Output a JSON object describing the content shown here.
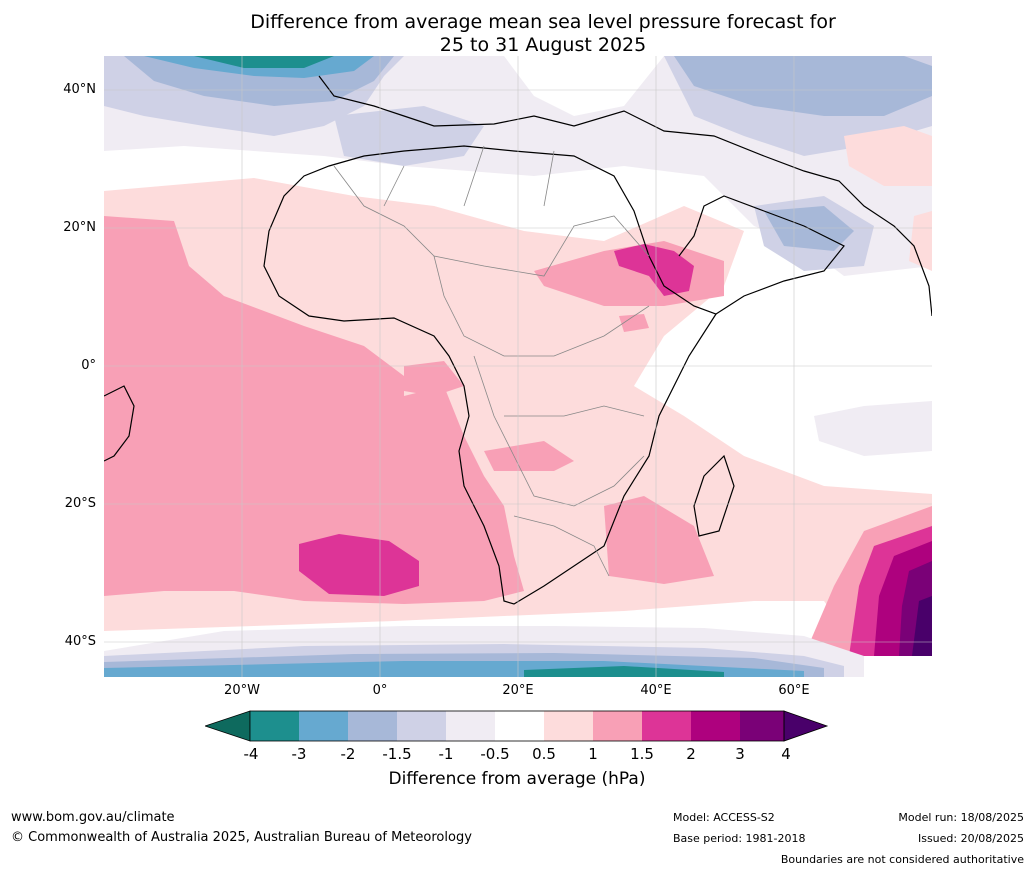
{
  "title": {
    "line1": "Difference from average mean sea level pressure forecast for",
    "line2": "25 to 31 August 2025"
  },
  "axes": {
    "lat_labels": [
      "40°N",
      "20°N",
      "0°",
      "20°S",
      "40°S"
    ],
    "lon_labels": [
      "20°W",
      "0°",
      "20°E",
      "40°E",
      "60°E"
    ]
  },
  "colorbar": {
    "label": "Difference from average (hPa)",
    "ticks": [
      "-4",
      "-3",
      "-2",
      "-1.5",
      "-1",
      "-0.5",
      "0.5",
      "1",
      "1.5",
      "2",
      "3",
      "4"
    ],
    "colors": {
      "below_-4": "#0e6a5e",
      "-4_-3": "#1d8f8e",
      "-3_-2": "#66a9d0",
      "-2_-1.5": "#a7b8d8",
      "-1.5_-1": "#cfd1e6",
      "-1_-0.5": "#f0ecf3",
      "-0.5_0.5": "#ffffff",
      "0.5_1": "#fddcdc",
      "1_1.5": "#f8a0b6",
      "1.5_2": "#dd3497",
      "2_3": "#ae017e",
      "3_4": "#7a0177",
      "above_4": "#49006a"
    }
  },
  "footer": {
    "website": "www.bom.gov.au/climate",
    "copyright": "© Commonwealth of Australia 2025, Australian Bureau of Meteorology",
    "model": "Model: ACCESS-S2",
    "base_period": "Base period: 1981-2018",
    "model_run": "Model run: 18/08/2025",
    "issued": "Issued: 20/08/2025",
    "disclaimer": "Boundaries are not considered authoritative"
  }
}
